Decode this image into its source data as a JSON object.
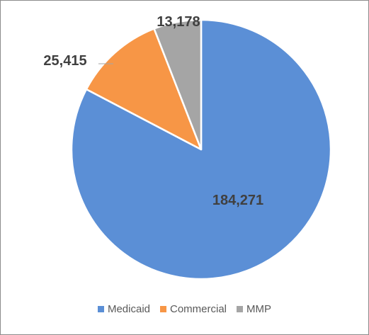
{
  "chart_data": {
    "type": "pie",
    "title": "",
    "categories": [
      "Medicaid",
      "Commercial",
      "MMP"
    ],
    "values": [
      184271,
      25415,
      13178
    ],
    "value_labels": [
      "184,271",
      "25,415",
      "13,178"
    ],
    "colors": [
      "#5B8FD6",
      "#F79646",
      "#A5A5A5"
    ],
    "legend_position": "bottom",
    "start_angle_deg": 0,
    "direction": "clockwise"
  }
}
